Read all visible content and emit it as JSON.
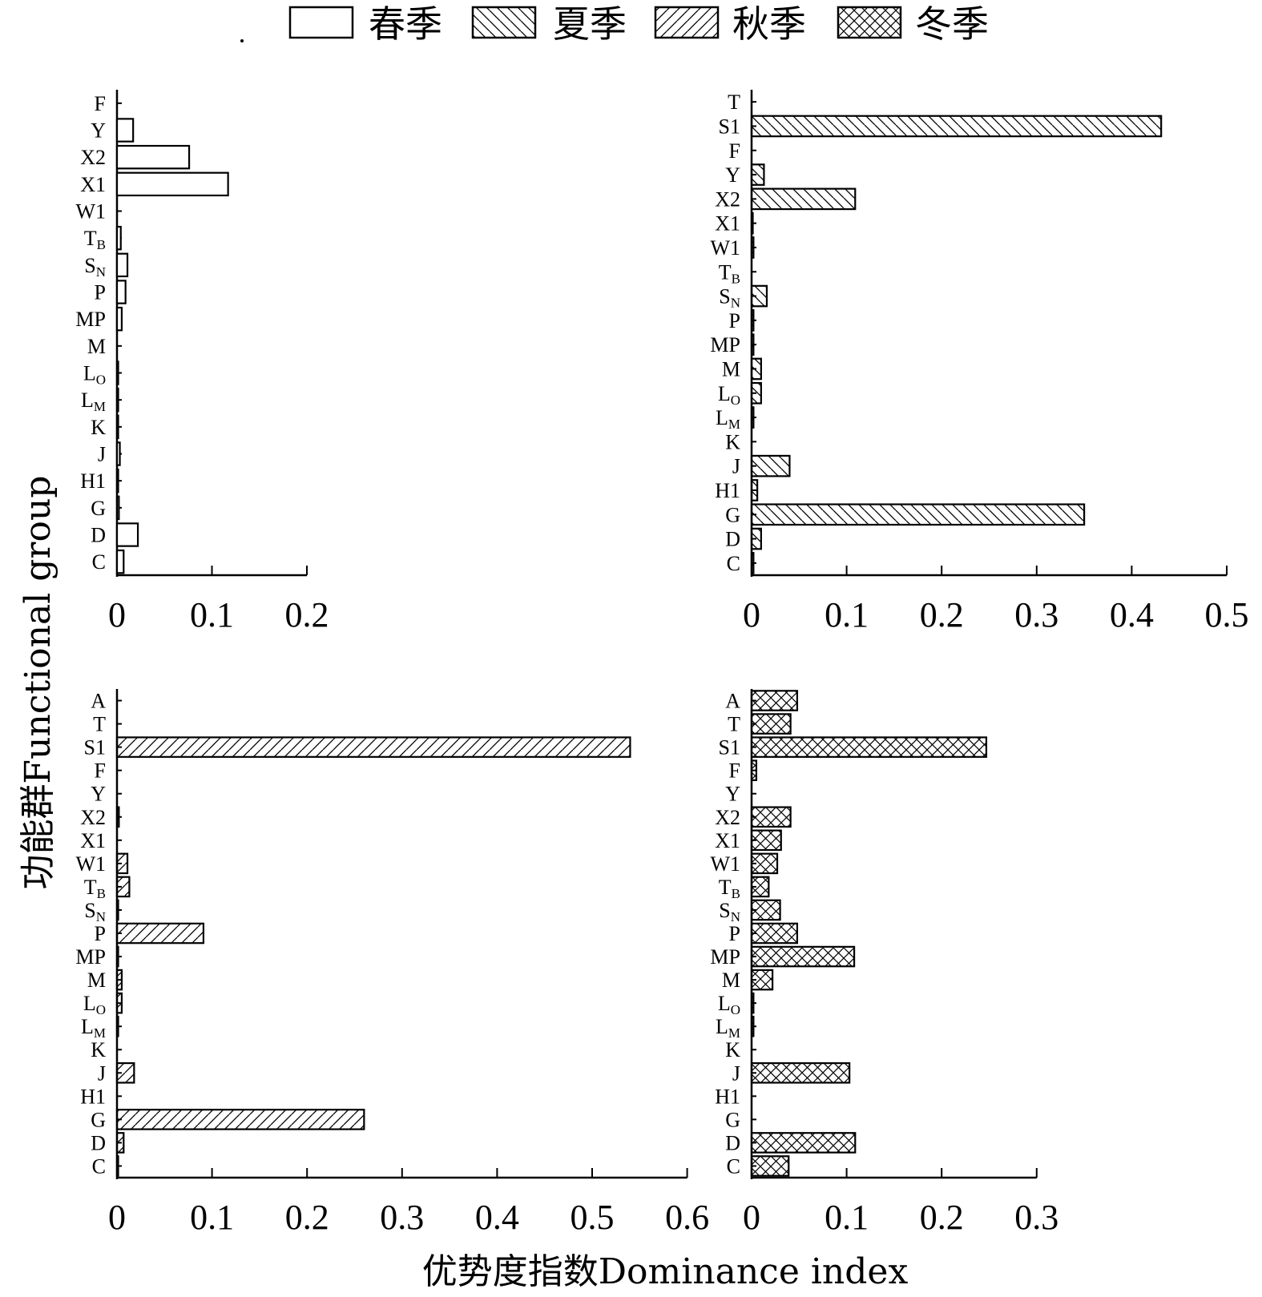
{
  "legend": [
    {
      "label": "春季",
      "pattern": "none"
    },
    {
      "label": "夏季",
      "pattern": "back"
    },
    {
      "label": "秋季",
      "pattern": "fwd"
    },
    {
      "label": "冬季",
      "pattern": "cross"
    }
  ],
  "ylabel": "功能群Functional group",
  "xlabel": "优势度指数Dominance index",
  "chart_data": [
    {
      "type": "bar",
      "orientation": "horizontal",
      "series": "春季",
      "pattern": "none",
      "xlim": [
        0,
        0.2
      ],
      "xticks": [
        0,
        0.1,
        0.2
      ],
      "xtick_labels": [
        "0",
        "0.1",
        "0.2"
      ],
      "categories": [
        {
          "main": "F",
          "sub": "",
          "value": 0
        },
        {
          "main": "Y",
          "sub": "",
          "value": 0.017
        },
        {
          "main": "X2",
          "sub": "",
          "value": 0.076
        },
        {
          "main": "X1",
          "sub": "",
          "value": 0.117
        },
        {
          "main": "W1",
          "sub": "",
          "value": 0
        },
        {
          "main": "T",
          "sub": "B",
          "value": 0.004
        },
        {
          "main": "S",
          "sub": "N",
          "value": 0.011
        },
        {
          "main": "P",
          "sub": "",
          "value": 0.009
        },
        {
          "main": "MP",
          "sub": "",
          "value": 0.005
        },
        {
          "main": "M",
          "sub": "",
          "value": 0
        },
        {
          "main": "L",
          "sub": "O",
          "value": 0.001
        },
        {
          "main": "L",
          "sub": "M",
          "value": 0.001
        },
        {
          "main": "K",
          "sub": "",
          "value": 0.001
        },
        {
          "main": "J",
          "sub": "",
          "value": 0.003
        },
        {
          "main": "H1",
          "sub": "",
          "value": 0.001
        },
        {
          "main": "G",
          "sub": "",
          "value": 0.002
        },
        {
          "main": "D",
          "sub": "",
          "value": 0.022
        },
        {
          "main": "C",
          "sub": "",
          "value": 0.007
        }
      ]
    },
    {
      "type": "bar",
      "orientation": "horizontal",
      "series": "夏季",
      "pattern": "back",
      "xlim": [
        0,
        0.5
      ],
      "xticks": [
        0,
        0.1,
        0.2,
        0.3,
        0.4,
        0.5
      ],
      "xtick_labels": [
        "0",
        "0.1",
        "0.2",
        "0.3",
        "0.4",
        "0.5"
      ],
      "categories": [
        {
          "main": "T",
          "sub": "",
          "value": 0
        },
        {
          "main": "S1",
          "sub": "",
          "value": 0.431
        },
        {
          "main": "F",
          "sub": "",
          "value": 0
        },
        {
          "main": "Y",
          "sub": "",
          "value": 0.013
        },
        {
          "main": "X2",
          "sub": "",
          "value": 0.109
        },
        {
          "main": "X1",
          "sub": "",
          "value": 0.001
        },
        {
          "main": "W1",
          "sub": "",
          "value": 0.002
        },
        {
          "main": "T",
          "sub": "B",
          "value": 0
        },
        {
          "main": "S",
          "sub": "N",
          "value": 0.016
        },
        {
          "main": "P",
          "sub": "",
          "value": 0.002
        },
        {
          "main": "MP",
          "sub": "",
          "value": 0.002
        },
        {
          "main": "M",
          "sub": "",
          "value": 0.01
        },
        {
          "main": "L",
          "sub": "O",
          "value": 0.01
        },
        {
          "main": "L",
          "sub": "M",
          "value": 0.002
        },
        {
          "main": "K",
          "sub": "",
          "value": 0
        },
        {
          "main": "J",
          "sub": "",
          "value": 0.04
        },
        {
          "main": "H1",
          "sub": "",
          "value": 0.006
        },
        {
          "main": "G",
          "sub": "",
          "value": 0.35
        },
        {
          "main": "D",
          "sub": "",
          "value": 0.01
        },
        {
          "main": "C",
          "sub": "",
          "value": 0.002
        }
      ]
    },
    {
      "type": "bar",
      "orientation": "horizontal",
      "series": "秋季",
      "pattern": "fwd",
      "xlim": [
        0,
        0.6
      ],
      "xticks": [
        0,
        0.1,
        0.2,
        0.3,
        0.4,
        0.5,
        0.6
      ],
      "xtick_labels": [
        "0",
        "0.1",
        "0.2",
        "0.3",
        "0.4",
        "0.5",
        "0.6"
      ],
      "categories": [
        {
          "main": "A",
          "sub": "",
          "value": 0
        },
        {
          "main": "T",
          "sub": "",
          "value": 0
        },
        {
          "main": "S1",
          "sub": "",
          "value": 0.54
        },
        {
          "main": "F",
          "sub": "",
          "value": 0
        },
        {
          "main": "Y",
          "sub": "",
          "value": 0
        },
        {
          "main": "X2",
          "sub": "",
          "value": 0.002
        },
        {
          "main": "X1",
          "sub": "",
          "value": 0
        },
        {
          "main": "W1",
          "sub": "",
          "value": 0.011
        },
        {
          "main": "T",
          "sub": "B",
          "value": 0.013
        },
        {
          "main": "S",
          "sub": "N",
          "value": 0.001
        },
        {
          "main": "P",
          "sub": "",
          "value": 0.091
        },
        {
          "main": "MP",
          "sub": "",
          "value": 0.001
        },
        {
          "main": "M",
          "sub": "",
          "value": 0.005
        },
        {
          "main": "L",
          "sub": "O",
          "value": 0.005
        },
        {
          "main": "L",
          "sub": "M",
          "value": 0.001
        },
        {
          "main": "K",
          "sub": "",
          "value": 0
        },
        {
          "main": "J",
          "sub": "",
          "value": 0.018
        },
        {
          "main": "H1",
          "sub": "",
          "value": 0
        },
        {
          "main": "G",
          "sub": "",
          "value": 0.26
        },
        {
          "main": "D",
          "sub": "",
          "value": 0.007
        },
        {
          "main": "C",
          "sub": "",
          "value": 0.001
        }
      ]
    },
    {
      "type": "bar",
      "orientation": "horizontal",
      "series": "冬季",
      "pattern": "cross",
      "xlim": [
        0,
        0.3
      ],
      "xticks": [
        0,
        0.1,
        0.2,
        0.3
      ],
      "xtick_labels": [
        "0",
        "0.1",
        "0.2",
        "0.3"
      ],
      "categories": [
        {
          "main": "A",
          "sub": "",
          "value": 0.048
        },
        {
          "main": "T",
          "sub": "",
          "value": 0.041
        },
        {
          "main": "S1",
          "sub": "",
          "value": 0.247
        },
        {
          "main": "F",
          "sub": "",
          "value": 0.005
        },
        {
          "main": "Y",
          "sub": "",
          "value": 0
        },
        {
          "main": "X2",
          "sub": "",
          "value": 0.041
        },
        {
          "main": "X1",
          "sub": "",
          "value": 0.031
        },
        {
          "main": "W1",
          "sub": "",
          "value": 0.027
        },
        {
          "main": "T",
          "sub": "B",
          "value": 0.018
        },
        {
          "main": "S",
          "sub": "N",
          "value": 0.03
        },
        {
          "main": "P",
          "sub": "",
          "value": 0.048
        },
        {
          "main": "MP",
          "sub": "",
          "value": 0.108
        },
        {
          "main": "M",
          "sub": "",
          "value": 0.022
        },
        {
          "main": "L",
          "sub": "O",
          "value": 0.002
        },
        {
          "main": "L",
          "sub": "M",
          "value": 0.002
        },
        {
          "main": "K",
          "sub": "",
          "value": 0
        },
        {
          "main": "J",
          "sub": "",
          "value": 0.103
        },
        {
          "main": "H1",
          "sub": "",
          "value": 0
        },
        {
          "main": "G",
          "sub": "",
          "value": 0
        },
        {
          "main": "D",
          "sub": "",
          "value": 0.109
        },
        {
          "main": "C",
          "sub": "",
          "value": 0.039
        }
      ]
    }
  ]
}
